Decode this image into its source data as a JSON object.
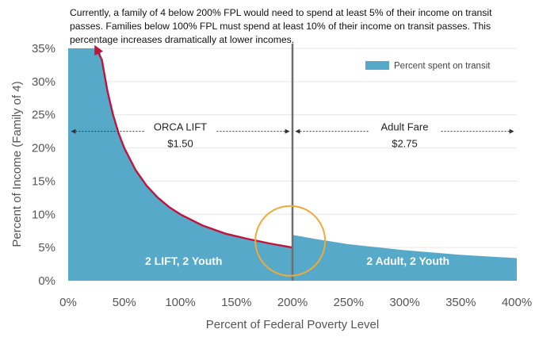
{
  "annotation_lines": [
    "Currently, a family of 4 below 200% FPL would need to spend at least 5% of their income on transit",
    "passes. Families below 100% FPL must spend at least 10% of their income on transit passes. This",
    "percentage increases dramatically at lower incomes."
  ],
  "colors": {
    "area": "#56a9c9",
    "curve": "#c0143c",
    "divider": "#6e6e6e",
    "circle": "#f0a93b",
    "arrow": "#333333"
  },
  "chart_data": {
    "type": "area",
    "xlabel": "Percent of Federal Poverty Level",
    "ylabel": "Percent of Income (Family of 4)",
    "xlim": [
      0,
      400
    ],
    "ylim": [
      0,
      35
    ],
    "x_ticks": [
      0,
      50,
      100,
      150,
      200,
      250,
      300,
      350,
      400
    ],
    "x_tick_labels": [
      "0%",
      "50%",
      "100%",
      "150%",
      "200%",
      "250%",
      "300%",
      "350%",
      "400%"
    ],
    "y_ticks": [
      0,
      5,
      10,
      15,
      20,
      25,
      30,
      35
    ],
    "y_tick_labels": [
      "0%",
      "5%",
      "10%",
      "15%",
      "20%",
      "25%",
      "30%",
      "35%"
    ],
    "grid": "horizontal",
    "legend": {
      "position": "top-right",
      "entries": [
        "Percent spent on transit"
      ]
    },
    "series": [
      {
        "name": "Percent spent on transit",
        "segments": [
          {
            "x": [
              0,
              28,
              30,
              35,
              40,
              45,
              50,
              60,
              70,
              80,
              90,
              100,
              120,
              140,
              160,
              180,
              200
            ],
            "y": [
              35,
              35,
              33.3,
              28.6,
              25,
              22.2,
              20,
              16.7,
              14.3,
              12.5,
              11.1,
              10,
              8.3,
              7.1,
              6.3,
              5.6,
              5
            ]
          },
          {
            "x": [
              200,
              220,
              250,
              300,
              350,
              400
            ],
            "y": [
              6.9,
              6.3,
              5.5,
              4.6,
              3.9,
              3.4
            ]
          }
        ]
      }
    ],
    "highlight_curve": {
      "x": [
        25,
        30,
        35,
        40,
        45,
        50,
        60,
        70,
        80,
        90,
        100,
        120,
        140,
        160,
        180,
        200
      ],
      "y": [
        35,
        33.3,
        28.6,
        25,
        22.2,
        20,
        16.7,
        14.3,
        12.5,
        11.1,
        10,
        8.3,
        7.1,
        6.3,
        5.6,
        5
      ]
    },
    "divider_x": 200,
    "regions": [
      {
        "label": "ORCA LIFT",
        "price": "$1.50",
        "x_range": [
          0,
          200
        ],
        "y": 22.5
      },
      {
        "label": "Adult Fare",
        "price": "$2.75",
        "x_range": [
          200,
          400
        ],
        "y": 22.5
      }
    ],
    "inside_labels": [
      {
        "text": "2 LIFT, 2 Youth",
        "x": 103,
        "y": 2.4
      },
      {
        "text": "2 Adult, 2 Youth",
        "x": 303,
        "y": 2.4
      }
    ],
    "highlight_circle": {
      "x": 198,
      "y": 6
    }
  }
}
